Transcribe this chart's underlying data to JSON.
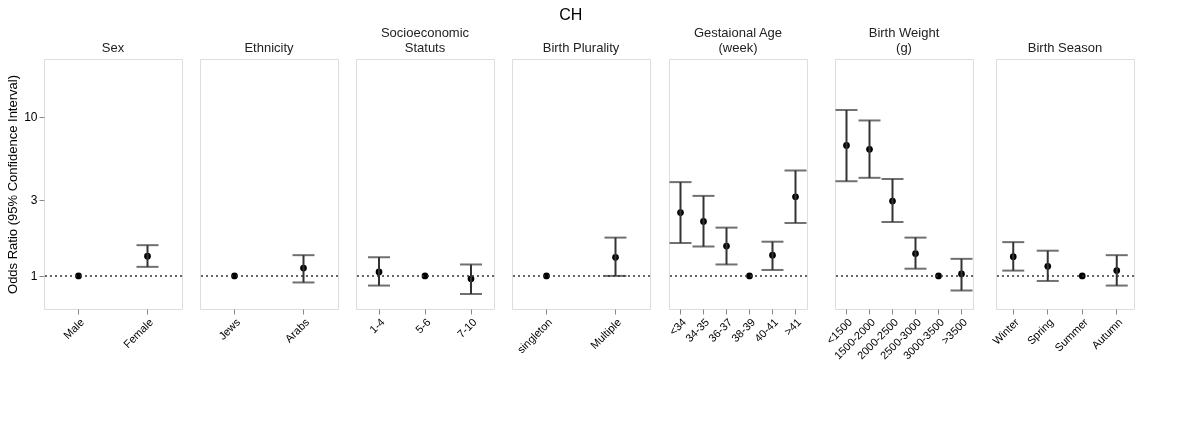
{
  "chart_data": [
    {
      "type": "scatter",
      "subtitle": "Sex",
      "ylabel": "Odds Ratio (95% Confidence Interval)",
      "categories": [
        "Male",
        "Female"
      ],
      "values": [
        1,
        1.33
      ],
      "errors": [
        null,
        [
          1.14,
          1.56
        ]
      ],
      "log": true,
      "ylim": [
        0.62,
        23
      ],
      "yticks": [
        1,
        3,
        10
      ],
      "marker": "circle",
      "grid": false,
      "ref_lines": [
        {
          "axis": "y",
          "value": 1,
          "line_style": "dotted"
        }
      ]
    },
    {
      "type": "scatter",
      "subtitle": "Ethnicity",
      "categories": [
        "Jews",
        "Arabs"
      ],
      "values": [
        1,
        1.12
      ],
      "errors": [
        null,
        [
          0.91,
          1.35
        ]
      ],
      "log": true,
      "ylim": [
        0.62,
        23
      ],
      "yticks": [
        1,
        3,
        10
      ],
      "tick_labels": "x",
      "marker": "circle",
      "grid": false,
      "ref_lines": [
        {
          "axis": "y",
          "value": 1,
          "line_style": "dotted"
        }
      ]
    },
    {
      "type": "scatter",
      "subtitle": "Socioeconomic Statuts",
      "categories": [
        "1-4",
        "5-6",
        "7-10"
      ],
      "values": [
        1.06,
        1,
        0.96
      ],
      "errors": [
        [
          0.87,
          1.31
        ],
        null,
        [
          0.77,
          1.18
        ]
      ],
      "log": true,
      "ylim": [
        0.62,
        23
      ],
      "yticks": [
        1,
        3,
        10
      ],
      "tick_labels": "x",
      "marker": "circle",
      "grid": false,
      "ref_lines": [
        {
          "axis": "y",
          "value": 1,
          "line_style": "dotted"
        }
      ]
    },
    {
      "type": "scatter",
      "title": "CH",
      "subtitle": "Birth Plurality",
      "categories": [
        "singleton",
        "Multiple"
      ],
      "values": [
        1,
        1.31
      ],
      "errors": [
        null,
        [
          1.0,
          1.74
        ]
      ],
      "log": true,
      "ylim": [
        0.62,
        23
      ],
      "yticks": [
        1,
        3,
        10
      ],
      "tick_labels": "x",
      "marker": "circle",
      "grid": false,
      "ref_lines": [
        {
          "axis": "y",
          "value": 1,
          "line_style": "dotted"
        }
      ]
    },
    {
      "type": "scatter",
      "subtitle": "Gestaional Age (week)",
      "categories": [
        "<34",
        "34-35",
        "36-37",
        "38-39",
        "40-41",
        ">41"
      ],
      "values": [
        2.5,
        2.2,
        1.54,
        1,
        1.35,
        3.14
      ],
      "errors": [
        [
          1.61,
          3.88
        ],
        [
          1.53,
          3.18
        ],
        [
          1.18,
          2.01
        ],
        null,
        [
          1.09,
          1.64
        ],
        [
          2.15,
          4.59
        ]
      ],
      "log": true,
      "ylim": [
        0.62,
        23
      ],
      "yticks": [
        1,
        3,
        10
      ],
      "tick_labels": "x",
      "marker": "circle",
      "grid": false,
      "ref_lines": [
        {
          "axis": "y",
          "value": 1,
          "line_style": "dotted"
        }
      ]
    },
    {
      "type": "scatter",
      "subtitle": "Birth Weight (g)",
      "categories": [
        "<1500",
        "1500-2000",
        "2000-2500",
        "2500-3000",
        "3000-3500",
        ">3500"
      ],
      "values": [
        6.59,
        6.23,
        2.95,
        1.38,
        1,
        1.03
      ],
      "errors": [
        [
          3.93,
          11.0
        ],
        [
          4.13,
          9.46
        ],
        [
          2.18,
          4.06
        ],
        [
          1.11,
          1.74
        ],
        null,
        [
          0.81,
          1.28
        ]
      ],
      "log": true,
      "ylim": [
        0.62,
        23
      ],
      "yticks": [
        1,
        3,
        10
      ],
      "tick_labels": "x",
      "marker": "circle",
      "grid": false,
      "ref_lines": [
        {
          "axis": "y",
          "value": 1,
          "line_style": "dotted"
        }
      ]
    },
    {
      "type": "scatter",
      "subtitle": "Birth Season",
      "categories": [
        "Winter",
        "Spring",
        "Summer",
        "Autumn"
      ],
      "values": [
        1.32,
        1.15,
        1,
        1.08
      ],
      "errors": [
        [
          1.08,
          1.63
        ],
        [
          0.93,
          1.44
        ],
        null,
        [
          0.87,
          1.35
        ]
      ],
      "log": true,
      "ylim": [
        0.62,
        23
      ],
      "yticks": [
        1,
        3,
        10
      ],
      "tick_labels": "x",
      "marker": "circle",
      "grid": false,
      "ref_lines": [
        {
          "axis": "y",
          "value": 1,
          "line_style": "dotted"
        }
      ]
    }
  ]
}
